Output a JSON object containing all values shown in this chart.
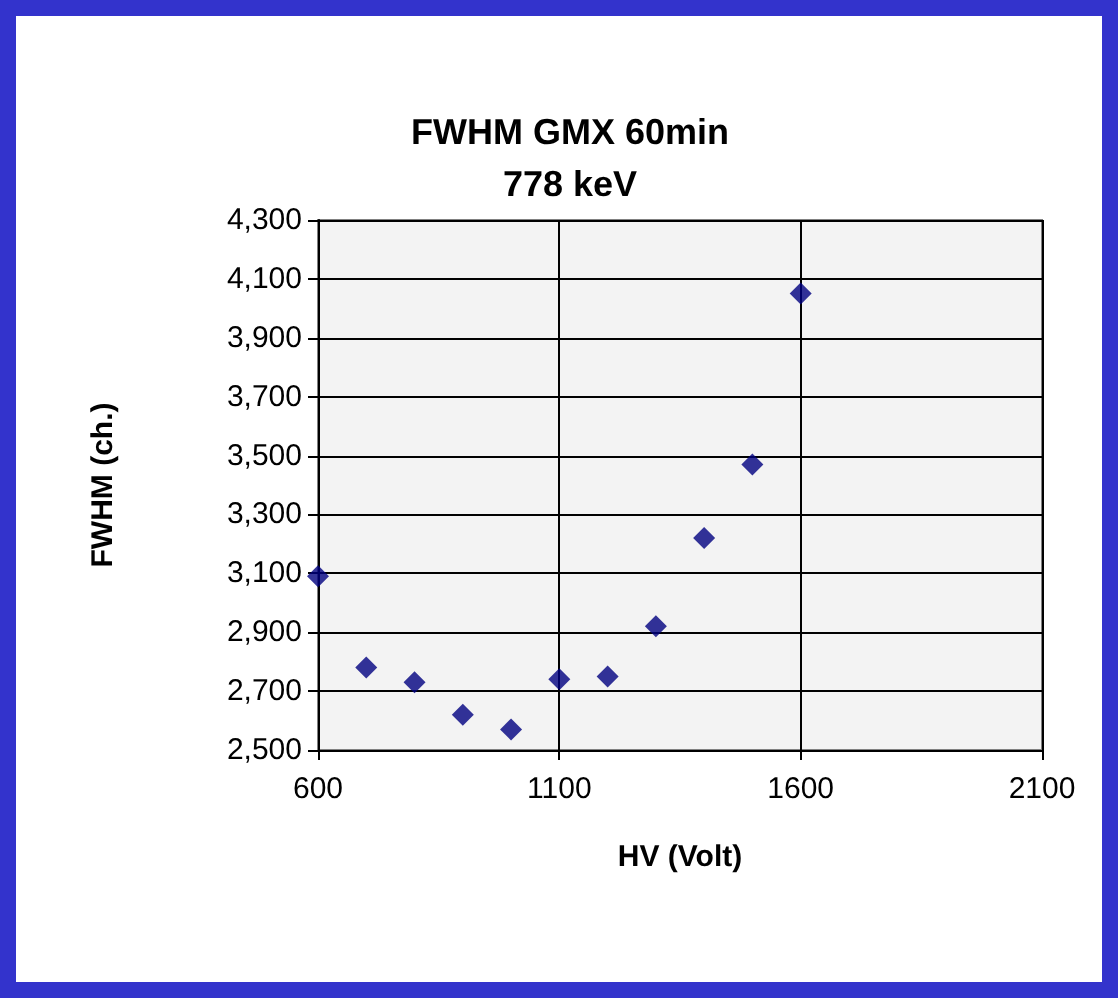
{
  "chart_data": {
    "type": "scatter",
    "title": "FWHM GMX 60min\n778 keV",
    "xlabel": "HV (Volt)",
    "ylabel": "FWHM (ch.)",
    "x": [
      600,
      700,
      800,
      900,
      1000,
      1100,
      1200,
      1300,
      1400,
      1500,
      1600
    ],
    "series": [
      {
        "color": "#000080",
        "values": [
          3090,
          2780,
          2730,
          2620,
          2570,
          2740,
          2750,
          2920,
          3220,
          3470,
          4050
        ]
      }
    ],
    "xlim": [
      600,
      2100
    ],
    "xticks": [
      600,
      1100,
      1600,
      2100
    ],
    "ylim": [
      2500,
      4300
    ],
    "yticks": [
      {
        "value": 2500,
        "label": "2,500"
      },
      {
        "value": 2700,
        "label": "2,700"
      },
      {
        "value": 2900,
        "label": "2,900"
      },
      {
        "value": 3100,
        "label": "3,100"
      },
      {
        "value": 3300,
        "label": "3,300"
      },
      {
        "value": 3500,
        "label": "3,500"
      },
      {
        "value": 3700,
        "label": "3,700"
      },
      {
        "value": 3900,
        "label": "3,900"
      },
      {
        "value": 4100,
        "label": "4,100"
      },
      {
        "value": 4300,
        "label": "4,300"
      }
    ],
    "grid": true,
    "marker": "diamond"
  }
}
